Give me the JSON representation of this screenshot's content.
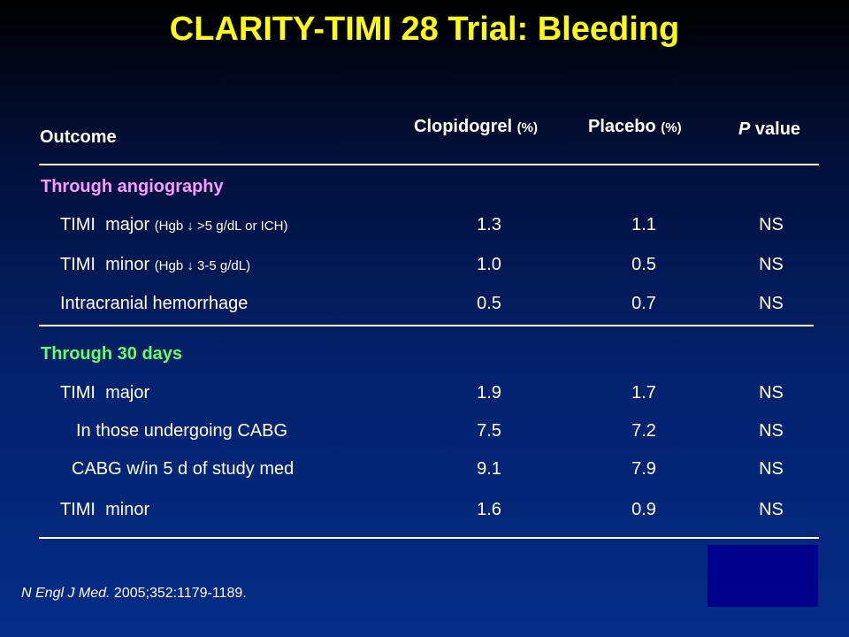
{
  "title": "CLARITY-TIMI 28 Trial: Bleeding",
  "header": {
    "outcome": "Outcome",
    "clopidogrel": "Clopidogrel",
    "clopidogrel_unit": "(%)",
    "placebo": "Placebo",
    "placebo_unit": "(%)",
    "p_italic": "P",
    "p_rest": " value"
  },
  "sections": [
    {
      "label": "Through angiography",
      "color": "#ff99ff",
      "rows": [
        {
          "label": "TIMI  major",
          "sub": "(Hgb ↓ >5 g/dL or ICH)",
          "clopidogrel": "1.3",
          "placebo": "1.1",
          "p": "NS"
        },
        {
          "label": "TIMI  minor",
          "sub": "(Hgb ↓ 3-5 g/dL)",
          "clopidogrel": "1.0",
          "placebo": "0.5",
          "p": "NS"
        },
        {
          "label": "Intracranial hemorrhage",
          "sub": "",
          "clopidogrel": "0.5",
          "placebo": "0.7",
          "p": "NS"
        }
      ]
    },
    {
      "label": "Through 30 days",
      "color": "#66ff66",
      "rows": [
        {
          "label": "TIMI  major",
          "sub": "",
          "clopidogrel": "1.9",
          "placebo": "1.7",
          "p": "NS"
        },
        {
          "label": "In those undergoing CABG",
          "sub": "",
          "clopidogrel": "7.5",
          "placebo": "7.2",
          "p": "NS"
        },
        {
          "label": "CABG w/in 5 d of study med",
          "sub": "",
          "clopidogrel": "9.1",
          "placebo": "7.9",
          "p": "NS"
        },
        {
          "label": "TIMI  minor",
          "sub": "",
          "clopidogrel": "1.6",
          "placebo": "0.9",
          "p": "NS"
        }
      ]
    }
  ],
  "citation": {
    "journal": "N Engl J Med.",
    "rest": " 2005;352:1179-1189."
  },
  "colors": {
    "title": "#ffff00",
    "text": "#ffffff",
    "background_top": "#000000",
    "background_bottom": "#042c86",
    "box": "#00008b"
  }
}
